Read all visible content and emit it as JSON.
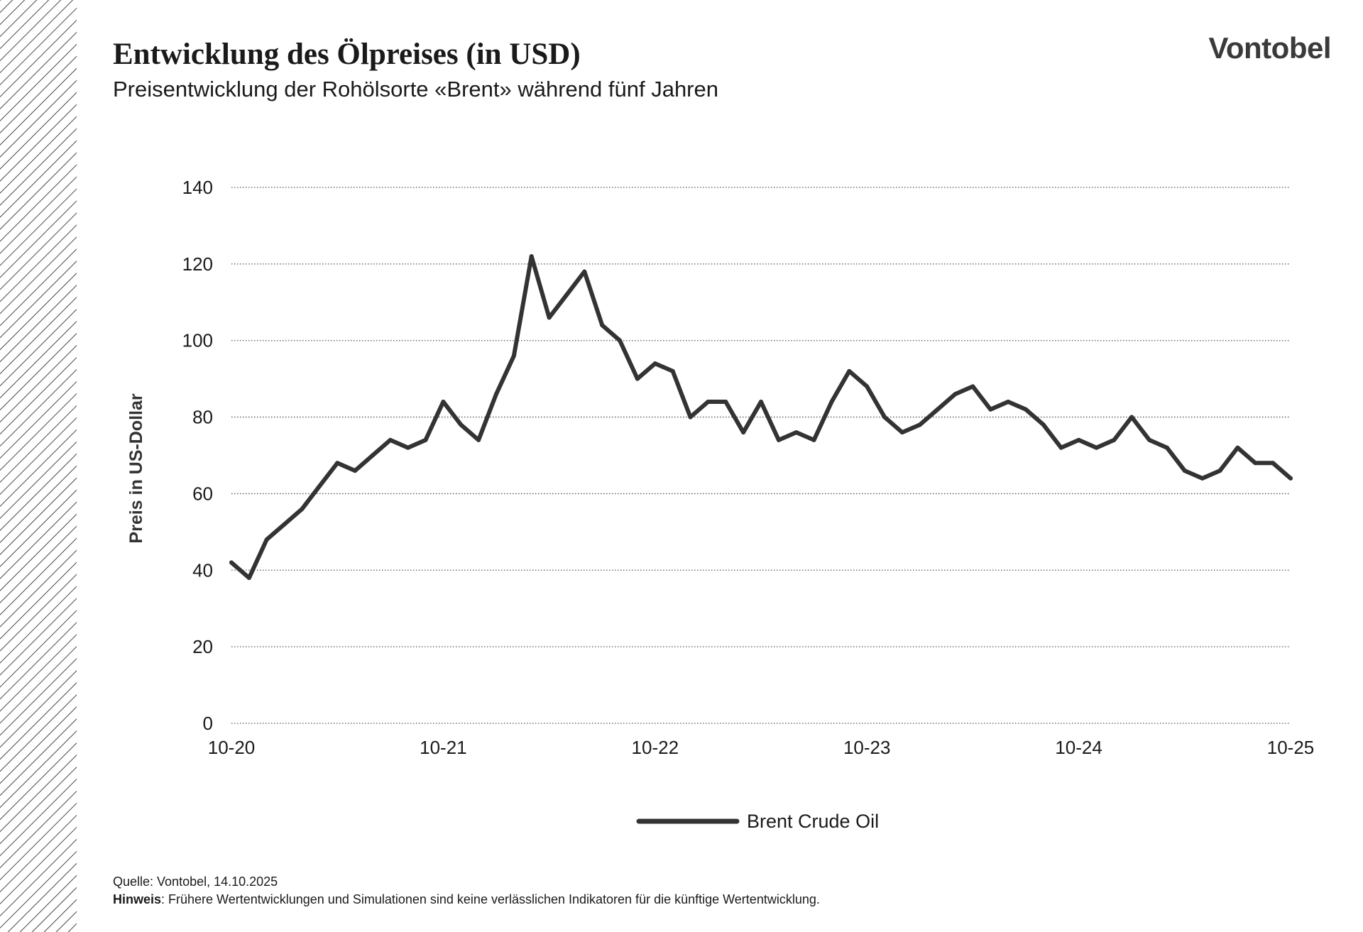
{
  "header": {
    "title": "Entwicklung des Ölpreises (in USD)",
    "subtitle": "Preisentwicklung der Rohölsorte «Brent» während fünf Jahren",
    "logo": "Vontobel"
  },
  "footer": {
    "source": "Quelle: Vontobel, 14.10.2025",
    "note_label": "Hinweis",
    "note_text": ": Frühere Wertentwicklungen und Simulationen sind keine verlässlichen Indikatoren für die künftige Wertentwicklung."
  },
  "colors": {
    "line": "#333333",
    "grid": "#555555",
    "text": "#1a1a1a"
  },
  "chart_data": {
    "type": "line",
    "title": "Entwicklung des Ölpreises (in USD)",
    "subtitle": "Preisentwicklung der Rohölsorte «Brent» während fünf Jahren",
    "xlabel": "",
    "ylabel": "Preis in US-Dollar",
    "ylim": [
      0,
      140
    ],
    "yticks": [
      0,
      20,
      40,
      60,
      80,
      100,
      120,
      140
    ],
    "xlim": [
      "2020-10",
      "2025-10"
    ],
    "xticks": [
      "10-20",
      "10-21",
      "10-22",
      "10-23",
      "10-24",
      "10-25"
    ],
    "grid": "horizontal-dotted",
    "legend": "bottom-center",
    "series": [
      {
        "name": "Brent Crude Oil",
        "x": [
          "2020-10",
          "2020-11",
          "2020-12",
          "2021-01",
          "2021-02",
          "2021-03",
          "2021-04",
          "2021-05",
          "2021-06",
          "2021-07",
          "2021-08",
          "2021-09",
          "2021-10",
          "2021-11",
          "2021-12",
          "2022-01",
          "2022-02",
          "2022-03",
          "2022-04",
          "2022-05",
          "2022-06",
          "2022-07",
          "2022-08",
          "2022-09",
          "2022-10",
          "2022-11",
          "2022-12",
          "2023-01",
          "2023-02",
          "2023-03",
          "2023-04",
          "2023-05",
          "2023-06",
          "2023-07",
          "2023-08",
          "2023-09",
          "2023-10",
          "2023-11",
          "2023-12",
          "2024-01",
          "2024-02",
          "2024-03",
          "2024-04",
          "2024-05",
          "2024-06",
          "2024-07",
          "2024-08",
          "2024-09",
          "2024-10",
          "2024-11",
          "2024-12",
          "2025-01",
          "2025-02",
          "2025-03",
          "2025-04",
          "2025-05",
          "2025-06",
          "2025-07",
          "2025-08",
          "2025-09",
          "2025-10"
        ],
        "values": [
          42,
          38,
          48,
          52,
          56,
          62,
          68,
          66,
          70,
          74,
          72,
          74,
          84,
          78,
          74,
          86,
          96,
          122,
          106,
          112,
          118,
          104,
          100,
          90,
          94,
          92,
          80,
          84,
          84,
          76,
          84,
          74,
          76,
          74,
          84,
          92,
          88,
          80,
          76,
          78,
          82,
          86,
          88,
          82,
          84,
          82,
          78,
          72,
          74,
          72,
          74,
          80,
          74,
          72,
          66,
          64,
          66,
          72,
          68,
          68,
          64
        ]
      }
    ]
  }
}
